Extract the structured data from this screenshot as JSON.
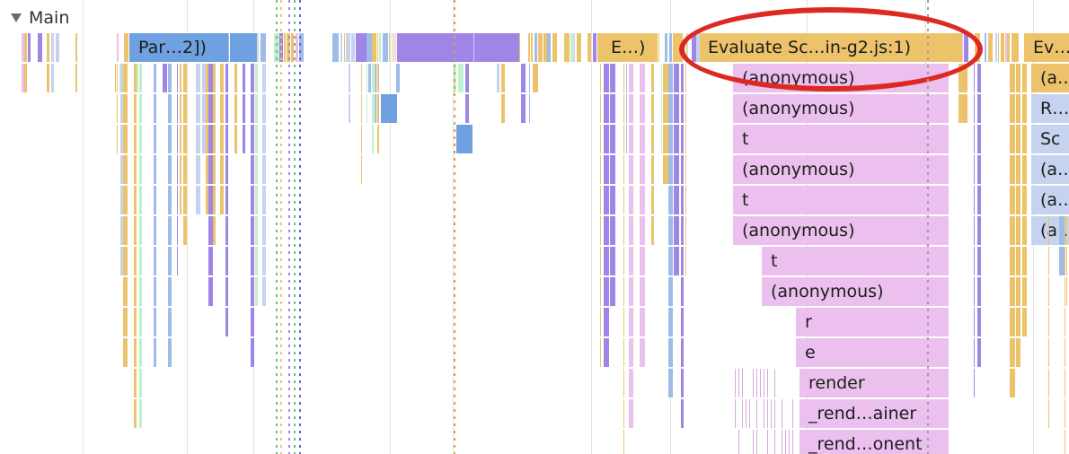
{
  "track": {
    "title": "Main"
  },
  "flame": {
    "parse_task": "Par…2])",
    "eval_short": "E…)",
    "eval_main": "Evaluate Sc…in-g2.js:1)",
    "eval_right": "Ev…",
    "main_stack": [
      "(anonymous)",
      "(anonymous)",
      "t",
      "(anonymous)",
      "t",
      "(anonymous)",
      "t",
      "(anonymous)",
      "r",
      "e",
      "render",
      "_rend…ainer",
      "_rend…onent"
    ],
    "right_stack": [
      "(a…",
      "R…",
      "Sc",
      "(a…",
      "(a…",
      "(a…"
    ]
  },
  "colors": {
    "script": "#ecc36a",
    "parse": "#6fa1e1",
    "purple": "#9f85e6",
    "pink": "#ecc0ee",
    "lightblue": "#c5d3ef",
    "green": "#bff0cf",
    "annotation": "#dc2a22"
  }
}
